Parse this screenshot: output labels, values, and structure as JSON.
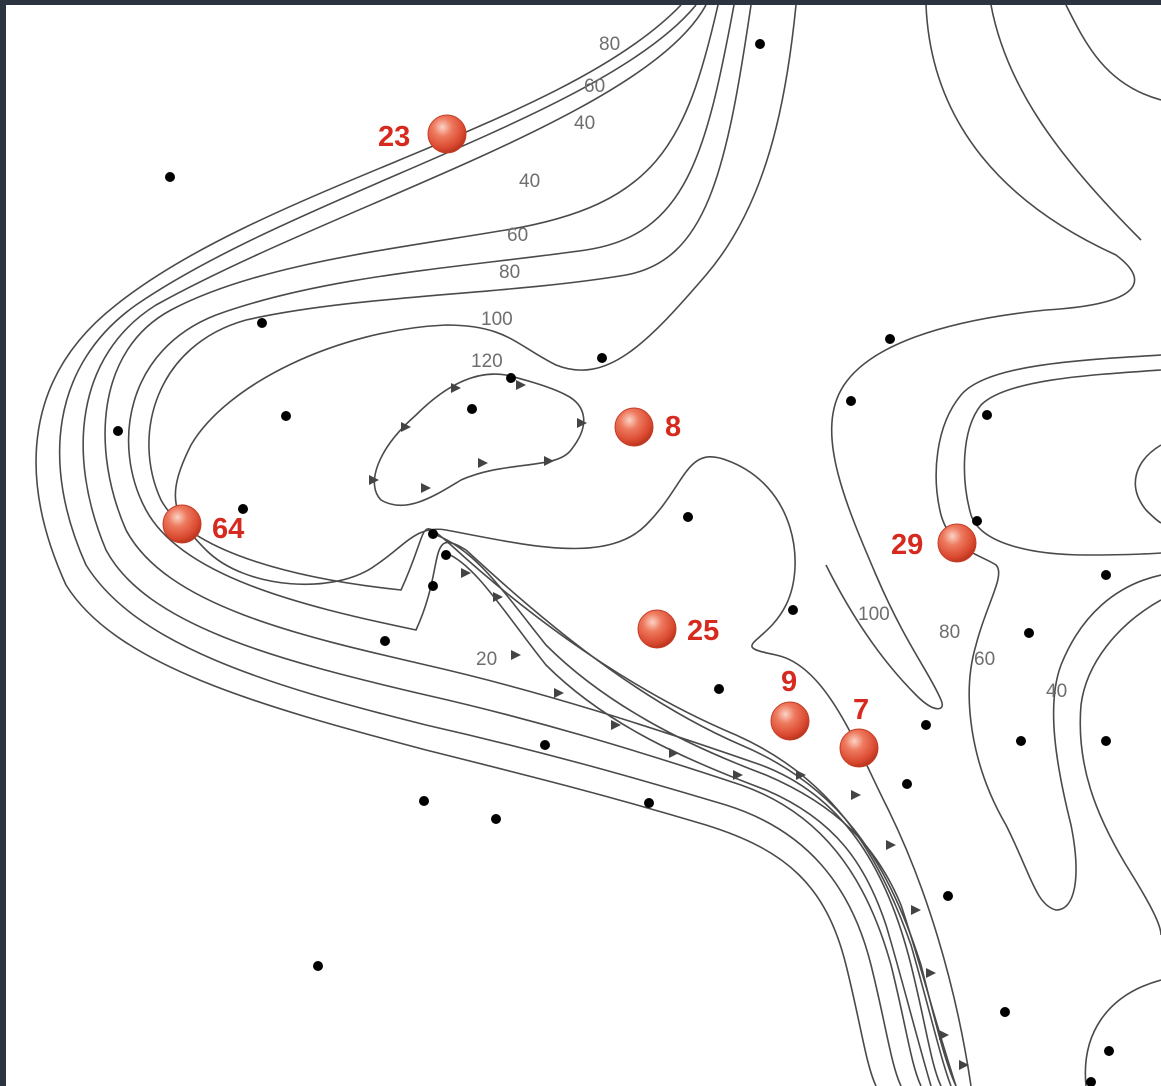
{
  "colors": {
    "frame": "#2b3440",
    "background": "#ffffff",
    "contour": "#4a4a4a",
    "contour_label": "#6e6e6e",
    "station_fill": "#e0593f",
    "station_label": "#d62a1e",
    "point": "#000000"
  },
  "contour_labels": [
    {
      "text": "80"
    },
    {
      "text": "60"
    },
    {
      "text": "40"
    },
    {
      "text": "40"
    },
    {
      "text": "60"
    },
    {
      "text": "80"
    },
    {
      "text": "100"
    },
    {
      "text": "120"
    },
    {
      "text": "20"
    },
    {
      "text": "100"
    },
    {
      "text": "80"
    },
    {
      "text": "60"
    },
    {
      "text": "40"
    }
  ],
  "stations": [
    {
      "label": "23"
    },
    {
      "label": "8"
    },
    {
      "label": "64"
    },
    {
      "label": "29"
    },
    {
      "label": "25"
    },
    {
      "label": "9"
    },
    {
      "label": "7"
    }
  ],
  "sample_points_icon": "black-dot-icon",
  "front_marker_icon": "triangle-marker-icon"
}
